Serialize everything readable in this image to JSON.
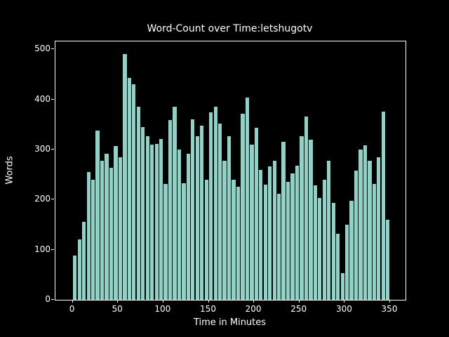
{
  "window": {
    "background_color": "#000000"
  },
  "chart_data": {
    "type": "bar",
    "title": "Word-Count over Time:letshugotv",
    "xlabel": "Time in Minutes",
    "ylabel": "Words",
    "bar_color": "#8dd3c7",
    "axis_color": "#ffffff",
    "text_color": "#ffffff",
    "background_color": "#000000",
    "grid": false,
    "bin_width_minutes": 5,
    "categories": [
      0,
      5,
      10,
      15,
      20,
      25,
      30,
      35,
      40,
      45,
      50,
      55,
      60,
      65,
      70,
      75,
      80,
      85,
      90,
      95,
      100,
      105,
      110,
      115,
      120,
      125,
      130,
      135,
      140,
      145,
      150,
      155,
      160,
      165,
      170,
      175,
      180,
      185,
      190,
      195,
      200,
      205,
      210,
      215,
      220,
      225,
      230,
      235,
      240,
      245,
      250,
      255,
      260,
      265,
      270,
      275,
      280,
      285,
      290,
      295,
      300,
      305,
      310,
      315,
      320,
      325,
      330,
      335,
      340,
      345
    ],
    "values": [
      88,
      120,
      155,
      255,
      240,
      337,
      278,
      292,
      263,
      307,
      285,
      490,
      443,
      430,
      385,
      345,
      327,
      310,
      311,
      321,
      231,
      358,
      385,
      300,
      232,
      292,
      360,
      327,
      348,
      240,
      374,
      385,
      352,
      278,
      327,
      240,
      225,
      371,
      403,
      310,
      343,
      259,
      230,
      266,
      277,
      212,
      315,
      236,
      252,
      268,
      327,
      366,
      320,
      229,
      203,
      240,
      278,
      194,
      131,
      53,
      150,
      198,
      258,
      300,
      308,
      278,
      231,
      284,
      376,
      160
    ],
    "xticks": [
      0,
      50,
      100,
      150,
      200,
      250,
      300,
      350
    ],
    "yticks": [
      0,
      100,
      200,
      300,
      400,
      500
    ],
    "xlim": [
      -19,
      367
    ],
    "ylim": [
      0,
      515.5
    ]
  }
}
